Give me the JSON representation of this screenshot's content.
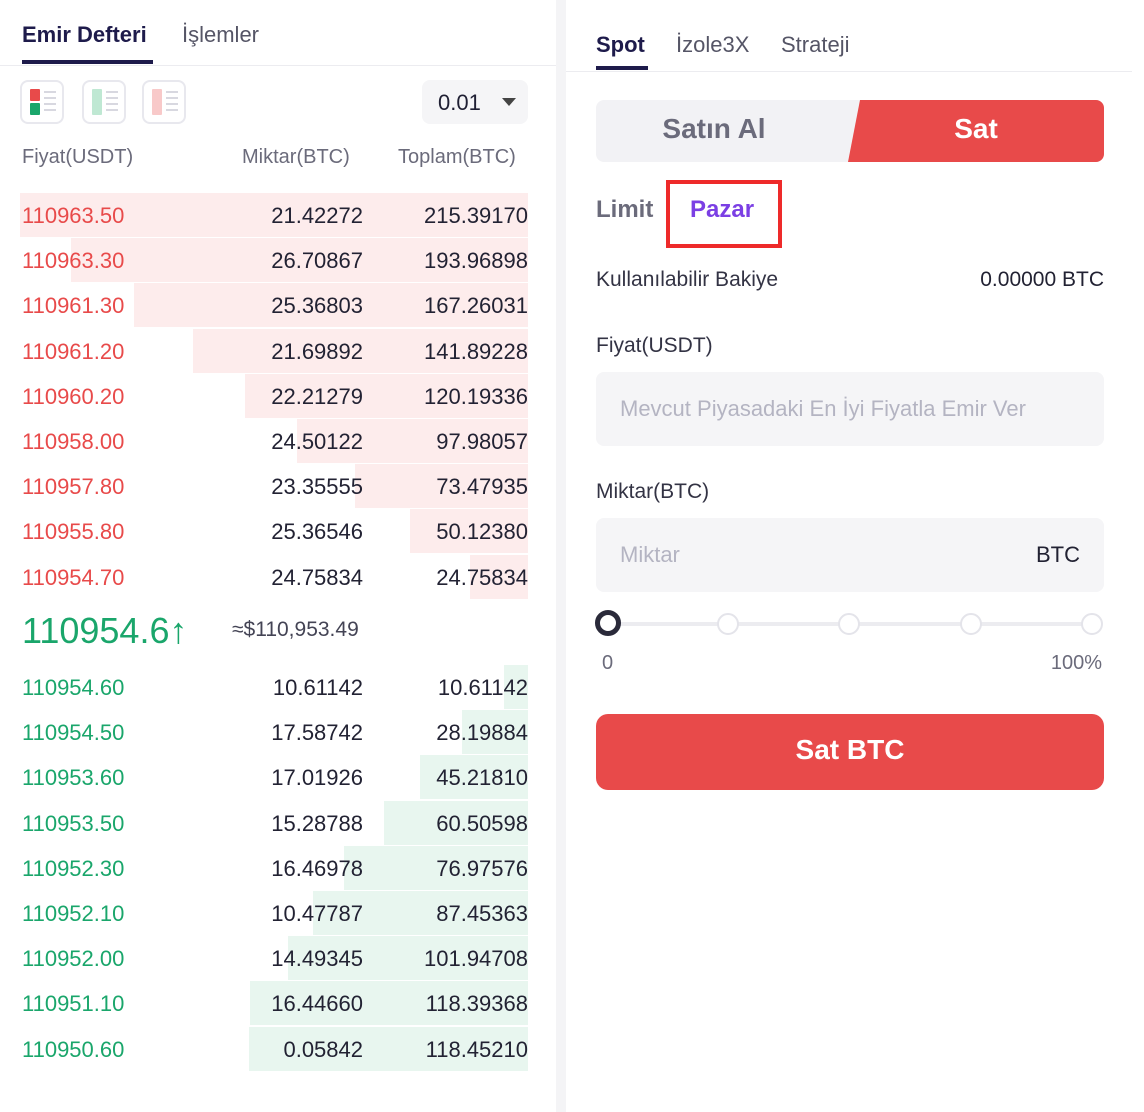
{
  "left_tabs": {
    "orderbook": "Emir Defteri",
    "trades": "İşlemler"
  },
  "precision": "0.01",
  "columns": {
    "price": "Fiyat(USDT)",
    "amount": "Miktar(BTC)",
    "total": "Toplam(BTC)"
  },
  "asks": [
    {
      "price": "110963.50",
      "amount": "21.42272",
      "total": "215.39170",
      "depth": 1.0
    },
    {
      "price": "110963.30",
      "amount": "26.70867",
      "total": "193.96898",
      "depth": 0.9
    },
    {
      "price": "110961.30",
      "amount": "25.36803",
      "total": "167.26031",
      "depth": 0.776
    },
    {
      "price": "110961.20",
      "amount": "21.69892",
      "total": "141.89228",
      "depth": 0.659
    },
    {
      "price": "110960.20",
      "amount": "22.21279",
      "total": "120.19336",
      "depth": 0.558
    },
    {
      "price": "110958.00",
      "amount": "24.50122",
      "total": "97.98057",
      "depth": 0.455
    },
    {
      "price": "110957.80",
      "amount": "23.35555",
      "total": "73.47935",
      "depth": 0.341
    },
    {
      "price": "110955.80",
      "amount": "25.36546",
      "total": "50.12380",
      "depth": 0.233
    },
    {
      "price": "110954.70",
      "amount": "24.75834",
      "total": "24.75834",
      "depth": 0.115
    }
  ],
  "last_price": {
    "value": "110954.6",
    "arrow": "↑",
    "usd": "≈$110,953.49"
  },
  "bids": [
    {
      "price": "110954.60",
      "amount": "10.61142",
      "total": "10.61142",
      "depth": 0.047
    },
    {
      "price": "110954.50",
      "amount": "17.58742",
      "total": "28.19884",
      "depth": 0.13
    },
    {
      "price": "110953.60",
      "amount": "17.01926",
      "total": "45.21810",
      "depth": 0.212
    },
    {
      "price": "110953.50",
      "amount": "15.28788",
      "total": "60.50598",
      "depth": 0.284
    },
    {
      "price": "110952.30",
      "amount": "16.46978",
      "total": "76.97576",
      "depth": 0.362
    },
    {
      "price": "110952.10",
      "amount": "10.47787",
      "total": "87.45363",
      "depth": 0.423
    },
    {
      "price": "110952.00",
      "amount": "14.49345",
      "total": "101.94708",
      "depth": 0.473
    },
    {
      "price": "110951.10",
      "amount": "16.44660",
      "total": "118.39368",
      "depth": 0.547
    },
    {
      "price": "110950.60",
      "amount": "0.05842",
      "total": "118.45210",
      "depth": 0.549
    }
  ],
  "right_tabs": {
    "spot": "Spot",
    "isolated": "İzole3X",
    "strategy": "Strateji"
  },
  "side": {
    "buy": "Satın Al",
    "sell": "Sat"
  },
  "order_types": {
    "limit": "Limit",
    "market": "Pazar"
  },
  "balance": {
    "label": "Kullanılabilir Bakiye",
    "value": "0.00000 BTC"
  },
  "price_field": {
    "label": "Fiyat(USDT)",
    "placeholder": "Mevcut Piyasadaki En İyi Fiyatla Emir Ver"
  },
  "amount_field": {
    "label": "Miktar(BTC)",
    "placeholder": "Miktar",
    "unit": "BTC"
  },
  "slider": {
    "min_label": "0",
    "max_label": "100%",
    "value": 0
  },
  "submit_label": "Sat BTC",
  "colors": {
    "ask": "#e84a4a",
    "bid": "#1aa66b",
    "accent": "#7b3fe4",
    "sell": "#e84a4a",
    "highlight": "#ee2a2a"
  }
}
